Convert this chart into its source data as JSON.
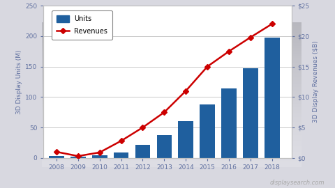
{
  "years": [
    2008,
    2009,
    2010,
    2011,
    2012,
    2013,
    2014,
    2015,
    2016,
    2017,
    2018
  ],
  "units": [
    3,
    2,
    4,
    9,
    21,
    38,
    60,
    88,
    114,
    147,
    198
  ],
  "revenues": [
    1.0,
    0.3,
    0.9,
    2.8,
    5.0,
    7.5,
    11.0,
    15.0,
    17.5,
    19.8,
    22.0
  ],
  "bar_color": "#1F5F9E",
  "line_color": "#CC0000",
  "marker_style": "D",
  "marker_size": 4,
  "left_ylabel": "3D Display Units (M)",
  "right_ylabel": "3D Display Revenues ($B)",
  "ylim_left": [
    0,
    250
  ],
  "ylim_right": [
    0,
    25
  ],
  "yticks_left": [
    0,
    50,
    100,
    150,
    200,
    250
  ],
  "yticks_right": [
    0,
    5,
    10,
    15,
    20,
    25
  ],
  "ytick_labels_right": [
    "$0",
    "$5",
    "$10",
    "$15",
    "$20",
    "$25"
  ],
  "axis_label_color": "#6070A0",
  "tick_color": "#6070A0",
  "grid_color": "#C0C0C0",
  "bg_top_color": "#D8D8E0",
  "bg_bottom_color": "#FFFFFF",
  "plot_bg_color": "#FFFFFF",
  "legend_units_label": "Units",
  "legend_revenues_label": "Revenues",
  "watermark": "displaysearch.com",
  "watermark_color": "#AAAAAA",
  "line_width": 1.8,
  "bar_width": 0.7
}
